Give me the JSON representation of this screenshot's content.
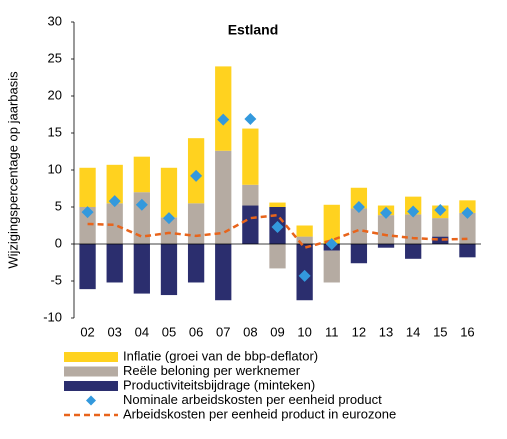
{
  "chart_data": {
    "type": "bar",
    "title": "Estland",
    "y_label": "Wijzigingspercentage op jaarbasis",
    "categories": [
      "02",
      "03",
      "04",
      "05",
      "06",
      "07",
      "08",
      "09",
      "10",
      "11",
      "12",
      "13",
      "14",
      "15",
      "16"
    ],
    "ylim": [
      -10,
      30
    ],
    "yticks": [
      -10,
      -5,
      0,
      5,
      10,
      15,
      20,
      25,
      30
    ],
    "series": [
      {
        "name": "Inflatie (groei van de bbp-deflator)",
        "type": "bar",
        "color": "#ffd21f",
        "values": [
          5.3,
          5.2,
          4.8,
          6.7,
          8.8,
          11.4,
          7.6,
          0.6,
          1.5,
          5.3,
          2.8,
          1.3,
          2.4,
          1.7,
          1.7
        ]
      },
      {
        "name": "Reële beloning per werknemer",
        "type": "bar",
        "color": "#b5aba2",
        "values": [
          5,
          5.5,
          7,
          3.6,
          5.5,
          12.6,
          2.8,
          -3.3,
          1,
          -4.3,
          4.8,
          3.9,
          4,
          2.5,
          4.2
        ]
      },
      {
        "name": "Productiviteitsbijdrage (minteken)",
        "type": "bar",
        "color": "#2b2e6e",
        "values": [
          -6.1,
          -5.2,
          -6.7,
          -6.9,
          -5.2,
          -7.6,
          5.2,
          5,
          -7.6,
          -0.9,
          -2.6,
          -0.5,
          -2,
          1,
          -1.8
        ]
      },
      {
        "name": "Nominale arbeidskosten per eenheid product",
        "type": "scatter",
        "color": "#3399dd",
        "values": [
          4.3,
          5.8,
          5.3,
          3.5,
          9.2,
          16.8,
          16.9,
          2.3,
          -4.3,
          0,
          5,
          4.2,
          4.4,
          4.6,
          4.2
        ]
      },
      {
        "name": "Arbeidskosten per eenheid product in eurozone",
        "type": "line",
        "color": "#e8641b",
        "values": [
          2.7,
          2.6,
          1,
          1.5,
          1.1,
          1.5,
          3.5,
          3.9,
          -0.5,
          0.5,
          1.9,
          1.2,
          0.8,
          0.6,
          0.7
        ]
      }
    ]
  }
}
